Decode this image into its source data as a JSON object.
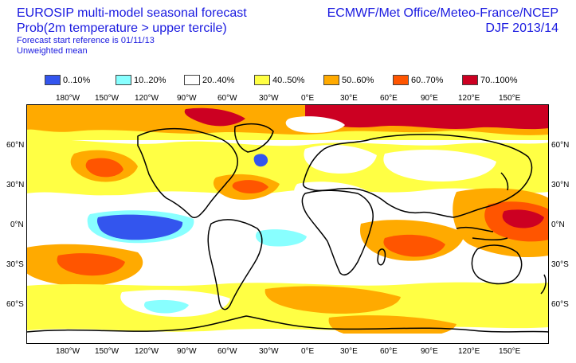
{
  "header": {
    "title": "EUROSIP multi-model seasonal forecast",
    "subtitle": "Prob(2m temperature > upper tercile)",
    "start_reference": "Forecast start reference is 01/11/13",
    "weighting": "Unweighted mean",
    "centres": "ECMWF/Met Office/Meteo-France/NCEP",
    "season": "DJF 2013/14"
  },
  "legend": [
    {
      "label": "0..10%",
      "color": "#3355ee"
    },
    {
      "label": "10..20%",
      "color": "#88ffff"
    },
    {
      "label": "20..40%",
      "color": "#ffffff"
    },
    {
      "label": "40..50%",
      "color": "#ffff44"
    },
    {
      "label": "50..60%",
      "color": "#ffaa00"
    },
    {
      "label": "60..70%",
      "color": "#ff5500"
    },
    {
      "label": "70..100%",
      "color": "#cc0022"
    }
  ],
  "map": {
    "lon_labels": [
      "180°W",
      "150°W",
      "120°W",
      "90°W",
      "60°W",
      "30°W",
      "0°E",
      "30°E",
      "60°E",
      "90°E",
      "120°E",
      "150°E"
    ],
    "lat_labels": [
      "60°N",
      "30°N",
      "0°N",
      "30°S",
      "60°S"
    ]
  }
}
